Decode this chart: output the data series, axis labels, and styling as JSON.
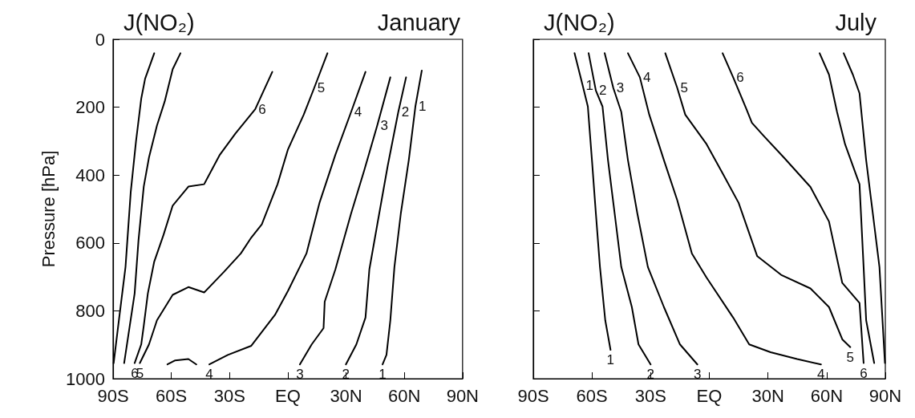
{
  "chart_data": [
    {
      "type": "line",
      "title": "J(NO₂)",
      "subtitle": "January",
      "ylabel": "Pressure [hPa]",
      "xlim": [
        -90,
        90
      ],
      "xticks": [
        {
          "value": -90,
          "label": "90S"
        },
        {
          "value": -60,
          "label": "60S"
        },
        {
          "value": -30,
          "label": "30S"
        },
        {
          "value": 0,
          "label": "EQ"
        },
        {
          "value": 30,
          "label": "30N"
        },
        {
          "value": 60,
          "label": "60N"
        },
        {
          "value": 90,
          "label": "90N"
        }
      ],
      "ylim": [
        1000,
        0
      ],
      "yticks": [
        0,
        200,
        400,
        600,
        800,
        1000
      ],
      "grid": false,
      "legend": false,
      "marker": "none",
      "line_style": "solid",
      "series": [
        {
          "color": "#000000",
          "x": [
            -68.8,
            -73.5,
            -75.5,
            -78.2,
            -80.9,
            -83.6,
            -87.0,
            -89.7
          ],
          "values": [
            41,
            116,
            175,
            301,
            450,
            671,
            828,
            954
          ]
        },
        {
          "color": "#000000",
          "x": [
            -55.3,
            -59.3,
            -63.4,
            -67.4,
            -71.5,
            -74.2,
            -76.9,
            -78.9,
            -84.3
          ],
          "values": [
            41,
            88,
            183,
            254,
            348,
            434,
            592,
            749,
            954
          ]
        },
        {
          "name": "6",
          "color": "#000000",
          "x": [
            -8.0,
            -16.8,
            -26.9,
            -35.0,
            -43.1,
            -51.2,
            -59.3,
            -64.0,
            -68.8,
            -72.1,
            -74.2,
            -75.5,
            -78.9
          ],
          "values": [
            96,
            206,
            277,
            340,
            427,
            434,
            490,
            576,
            655,
            749,
            844,
            899,
            954
          ]
        },
        {
          "name": "5",
          "color": "#000000",
          "x": [
            20.4,
            13.6,
            8.2,
            0.1,
            -5.3,
            -13.4,
            -18.8,
            -24.2,
            -33.0,
            -43.1,
            -51.2,
            -59.3,
            -67.4,
            -71.5,
            -76.2
          ],
          "values": [
            41,
            143,
            222,
            324,
            427,
            545,
            584,
            631,
            686,
            746,
            730,
            753,
            828,
            899,
            954
          ]
        },
        {
          "color": "#000000",
          "x": [
            -62.0,
            -58.0,
            -51.2,
            -47.1
          ],
          "values": [
            958,
            946,
            942,
            958
          ]
        },
        {
          "name": "4",
          "color": "#000000",
          "x": [
            40.0,
            32.6,
            24.5,
            16.3,
            9.6,
            0.1,
            -6.6,
            -18.8,
            -30.9,
            -40.4
          ],
          "values": [
            96,
            214,
            340,
            482,
            631,
            741,
            812,
            903,
            930,
            958
          ]
        },
        {
          "name": "3",
          "color": "#000000",
          "x": [
            52.8,
            46.1,
            39.3,
            32.6,
            24.5,
            19.0,
            18.4,
            12.3,
            6.2
          ],
          "values": [
            112,
            253,
            387,
            513,
            678,
            773,
            851,
            899,
            958
          ]
        },
        {
          "name": "2",
          "color": "#000000",
          "x": [
            60.9,
            56.9,
            51.5,
            46.1,
            42.0,
            40.0,
            35.3,
            29.9
          ],
          "values": [
            112,
            214,
            371,
            545,
            678,
            820,
            899,
            958
          ]
        },
        {
          "name": "1",
          "color": "#000000",
          "x": [
            69.0,
            65.7,
            62.3,
            58.2,
            54.9,
            52.8,
            50.8,
            48.8
          ],
          "values": [
            92,
            198,
            356,
            513,
            671,
            828,
            930,
            958
          ]
        }
      ]
    },
    {
      "type": "line",
      "title": "J(NO₂)",
      "subtitle": "July",
      "xlim": [
        -90,
        90
      ],
      "xticks": [
        {
          "value": -90,
          "label": "90S"
        },
        {
          "value": -60,
          "label": "60S"
        },
        {
          "value": -30,
          "label": "30S"
        },
        {
          "value": 0,
          "label": "EQ"
        },
        {
          "value": 30,
          "label": "30N"
        },
        {
          "value": 60,
          "label": "60N"
        },
        {
          "value": 90,
          "label": "90N"
        }
      ],
      "ylim": [
        1000,
        0
      ],
      "yticks": [
        0,
        200,
        400,
        600,
        800,
        1000
      ],
      "tick_labels": "x",
      "grid": false,
      "legend": false,
      "marker": "none",
      "line_style": "solid",
      "series": [
        {
          "name": "1",
          "color": "#000000",
          "x": [
            -68.9,
            -64.8,
            -62.1,
            -60.0,
            -58.0,
            -55.9,
            -53.2,
            -50.5
          ],
          "values": [
            41,
            135,
            198,
            356,
            513,
            671,
            828,
            915
          ]
        },
        {
          "name": "2",
          "color": "#000000",
          "x": [
            -61.7,
            -58.0,
            -54.6,
            -51.8,
            -48.4,
            -45.0,
            -39.6,
            -36.2,
            -30.0
          ],
          "values": [
            41,
            151,
            198,
            356,
            513,
            671,
            789,
            899,
            958
          ]
        },
        {
          "name": "3",
          "color": "#000000",
          "x": [
            -53.5,
            -49.1,
            -45.0,
            -41.6,
            -36.8,
            -31.4,
            -23.2,
            -15.0,
            -6.1
          ],
          "values": [
            41,
            143,
            214,
            356,
            513,
            671,
            789,
            899,
            958
          ]
        },
        {
          "name": "4",
          "color": "#000000",
          "x": [
            -41.6,
            -35.5,
            -30.7,
            -23.2,
            -16.4,
            -8.9,
            -1.4,
            12.2,
            20.4,
            31.3,
            44.9,
            57.1
          ],
          "values": [
            41,
            112,
            222,
            356,
            474,
            631,
            702,
            820,
            899,
            922,
            942,
            958
          ]
        },
        {
          "name": "5",
          "color": "#000000",
          "x": [
            -22.5,
            -16.4,
            -12.3,
            -1.4,
            6.8,
            15.0,
            24.5,
            36.7,
            51.7,
            61.2,
            68.0,
            72.1
          ],
          "values": [
            41,
            143,
            222,
            309,
            395,
            482,
            639,
            694,
            734,
            789,
            884,
            907
          ]
        },
        {
          "name": "6",
          "color": "#000000",
          "x": [
            6.8,
            12.2,
            19.0,
            21.8,
            27.9,
            38.1,
            51.7,
            61.2,
            68.0,
            76.8,
            78.9
          ],
          "values": [
            41,
            112,
            206,
            246,
            285,
            348,
            435,
            537,
            718,
            777,
            954
          ]
        },
        {
          "color": "#000000",
          "x": [
            56.4,
            61.2,
            65.3,
            69.4,
            76.8,
            78.9,
            80.2,
            84.3
          ],
          "values": [
            41,
            104,
            214,
            309,
            427,
            671,
            828,
            954
          ]
        },
        {
          "color": "#000000",
          "x": [
            68.7,
            73.4,
            76.8,
            80.2,
            83.6,
            87.0,
            89.8
          ],
          "values": [
            41,
            104,
            159,
            356,
            513,
            671,
            954
          ]
        }
      ]
    }
  ]
}
